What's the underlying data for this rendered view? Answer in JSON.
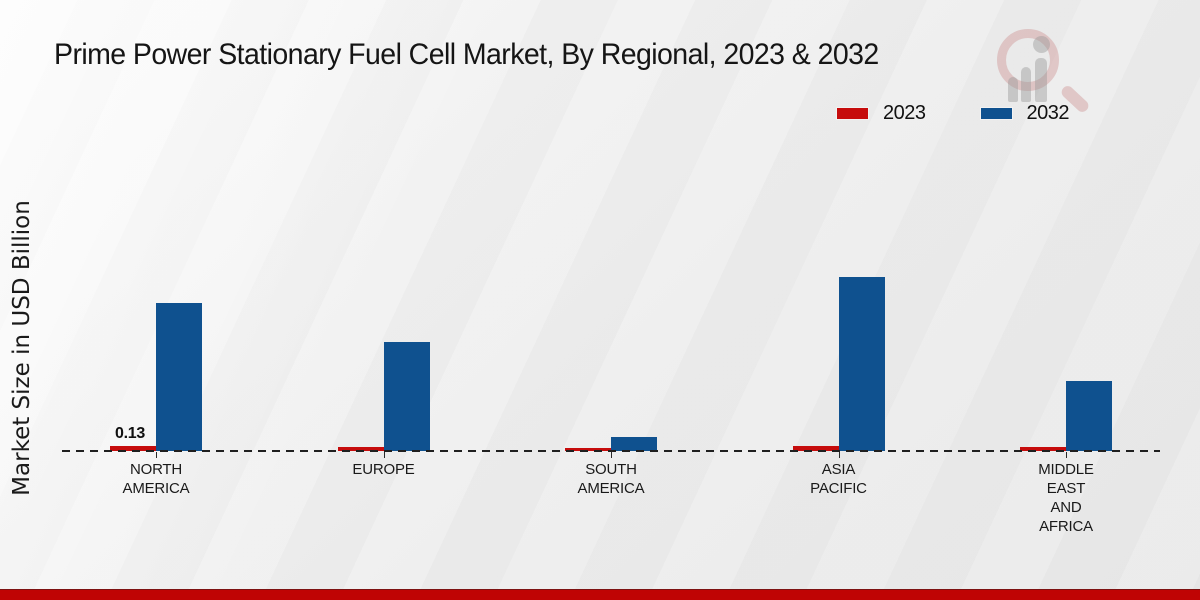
{
  "header": {
    "title": "Prime Power Stationary Fuel Cell Market, By Regional, 2023 & 2032"
  },
  "watermark": {
    "name": "magnifier-bars-logo-watermark"
  },
  "colors": {
    "series_2023_red": "#c60c0c",
    "series_2032_blue": "#0f518f",
    "footer_red": "#bf0404",
    "dashed_baseline": "#1f1f1f",
    "text": "#1a1a1a"
  },
  "chart_data": {
    "type": "bar",
    "title": "Prime Power Stationary Fuel Cell Market, By Regional, 2023 & 2032",
    "xlabel": "",
    "ylabel": "Market Size in USD Billion",
    "categories": [
      "NORTH AMERICA",
      "EUROPE",
      "SOUTH AMERICA",
      "ASIA PACIFIC",
      "MIDDLE EAST AND AFRICA"
    ],
    "category_lines": [
      [
        "NORTH",
        "AMERICA"
      ],
      [
        "EUROPE"
      ],
      [
        "SOUTH",
        "AMERICA"
      ],
      [
        "ASIA",
        "PACIFIC"
      ],
      [
        "MIDDLE",
        "EAST",
        "AND",
        "AFRICA"
      ]
    ],
    "series": [
      {
        "name": "2023",
        "color": "#c60c0c",
        "values": [
          0.13,
          0.1,
          0.09,
          0.12,
          0.1
        ]
      },
      {
        "name": "2032",
        "color": "#0f518f",
        "values": [
          3.85,
          2.85,
          0.36,
          4.53,
          1.82
        ]
      }
    ],
    "annotations": [
      {
        "series": "2023",
        "category": "NORTH AMERICA",
        "category_index": 0,
        "text": "0.13"
      }
    ],
    "ylim": [
      0,
      5
    ],
    "grid": false,
    "baseline": "dashed",
    "legend_position": "top-right"
  }
}
